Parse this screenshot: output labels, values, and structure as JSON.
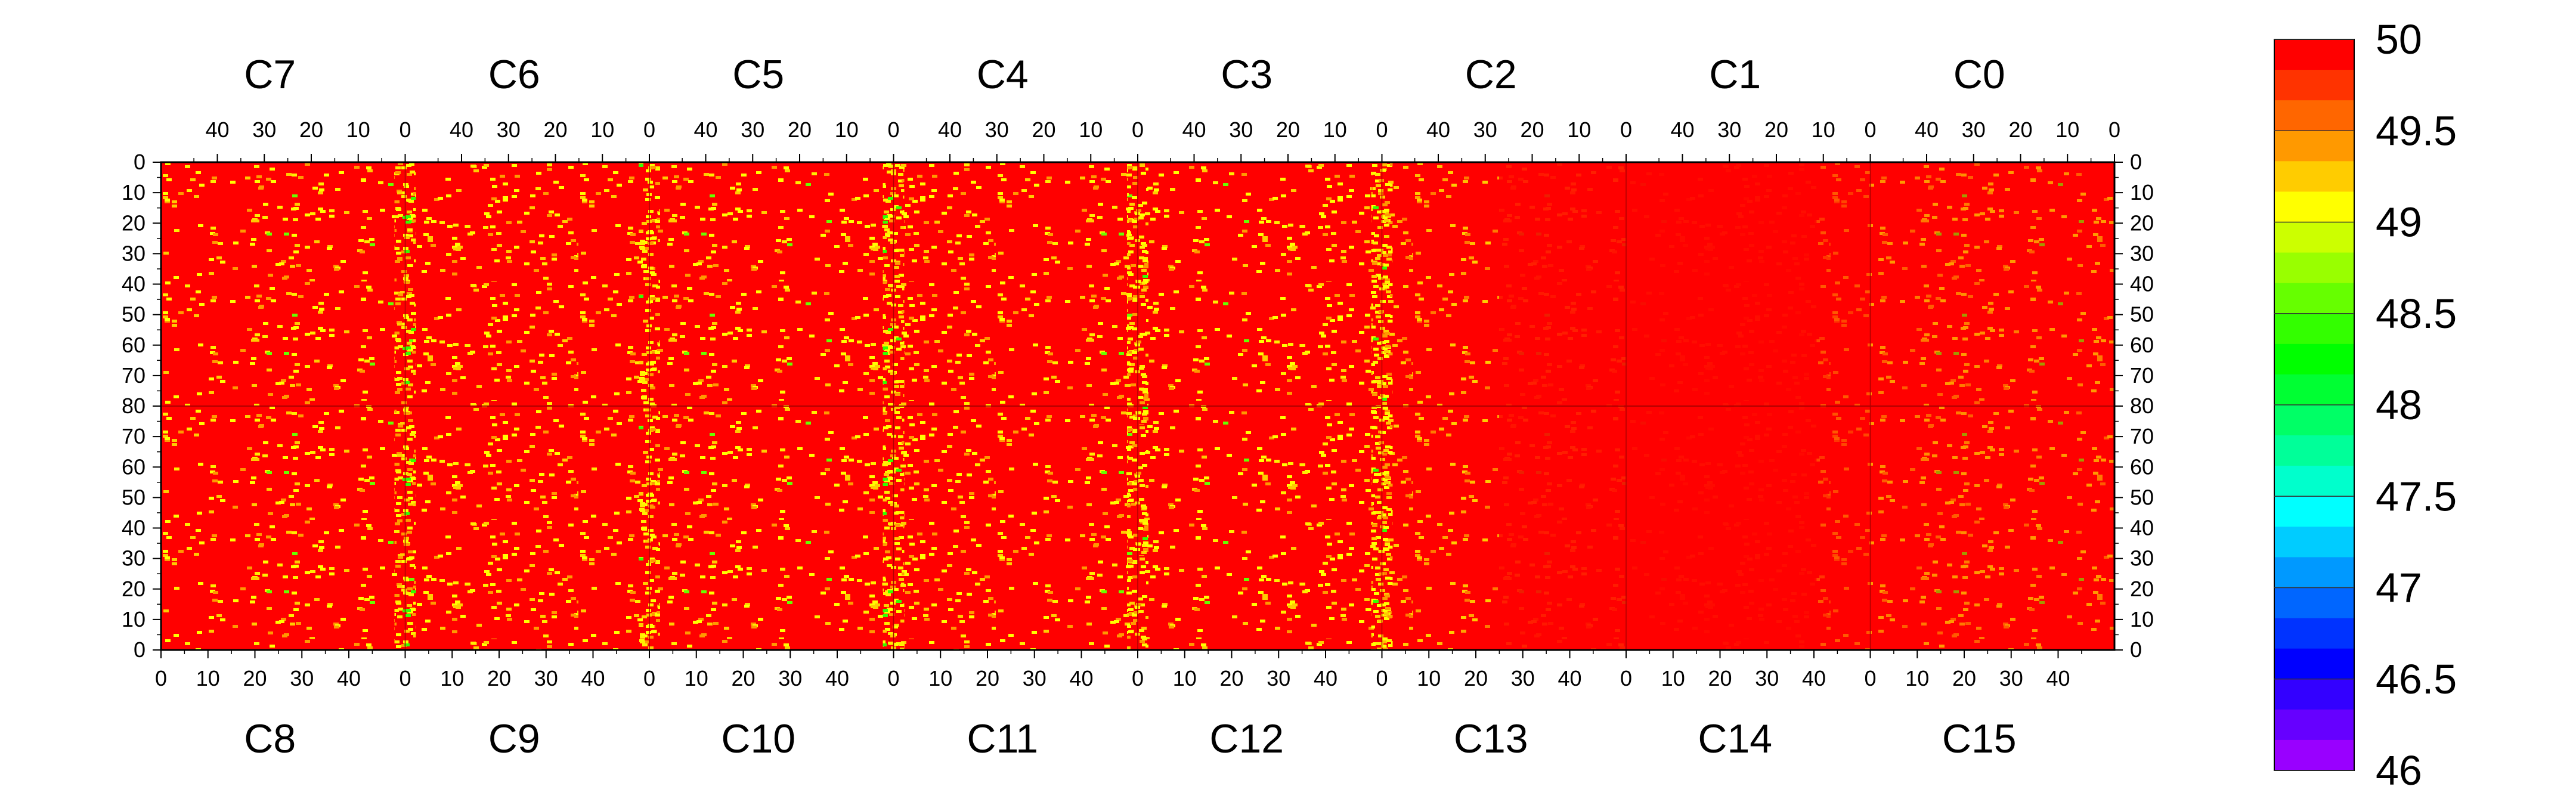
{
  "chart_data": {
    "type": "heatmap",
    "title": "",
    "xlabel": "",
    "ylabel": "",
    "top_panels": [
      "C7",
      "C6",
      "C5",
      "C4",
      "C3",
      "C2",
      "C1",
      "C0"
    ],
    "bottom_panels": [
      "C8",
      "C9",
      "C10",
      "C11",
      "C12",
      "C13",
      "C14",
      "C15"
    ],
    "x_range_per_panel": [
      0,
      52
    ],
    "top_x_tick_labels": [
      "40",
      "30",
      "20",
      "10",
      "0"
    ],
    "bottom_x_tick_labels": [
      "0",
      "10",
      "20",
      "30",
      "40"
    ],
    "y_range_top_half": [
      0,
      80
    ],
    "y_range_bottom_half": [
      80,
      0
    ],
    "y_tick_labels": [
      "0",
      "10",
      "20",
      "30",
      "40",
      "50",
      "60",
      "70",
      "80",
      "70",
      "60",
      "50",
      "40",
      "30",
      "20",
      "10",
      "0"
    ],
    "color_scale": {
      "min": 46,
      "max": 50,
      "tick_labels": [
        "50",
        "49.5",
        "49",
        "48.5",
        "48",
        "47.5",
        "47",
        "46.5",
        "46"
      ],
      "levels": [
        "#ff0000",
        "#ff3300",
        "#ff6600",
        "#ff9900",
        "#ffcc00",
        "#ffff00",
        "#ccff00",
        "#99ff00",
        "#66ff00",
        "#33ff00",
        "#00ff00",
        "#00ff33",
        "#00ff66",
        "#00ff99",
        "#00ffcc",
        "#00ffff",
        "#00ccff",
        "#0099ff",
        "#0066ff",
        "#0033ff",
        "#0000ff",
        "#3300ff",
        "#6600ff",
        "#9900ff"
      ]
    },
    "dominant_value": 50,
    "grid": false,
    "legend": "right"
  }
}
